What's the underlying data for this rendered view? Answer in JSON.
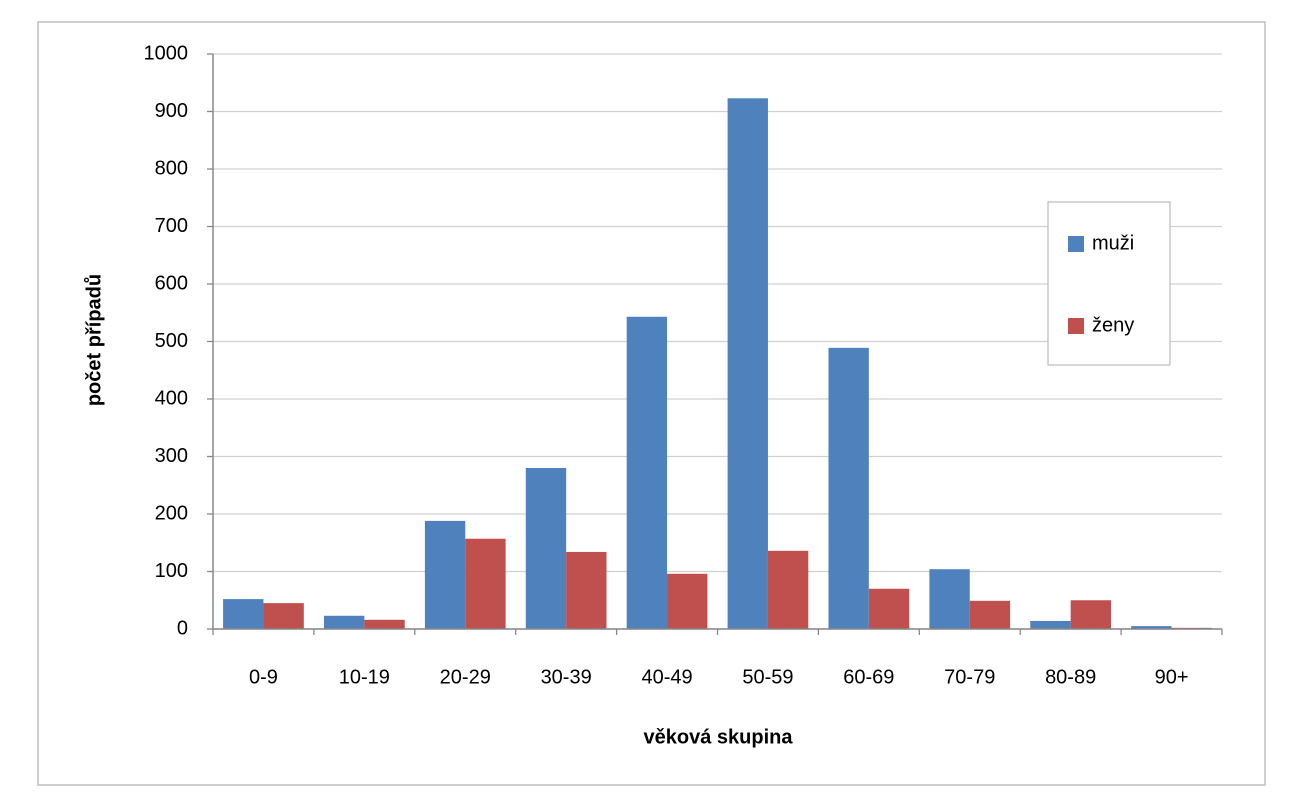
{
  "chart_data": {
    "type": "bar",
    "x_label": "věková skupina",
    "y_label": "počet případů",
    "categories": [
      "0-9",
      "10-19",
      "20-29",
      "30-39",
      "40-49",
      "50-59",
      "60-69",
      "70-79",
      "80-89",
      "90+"
    ],
    "series": [
      {
        "name": "muži",
        "color": "#4f81bd",
        "values": [
          52,
          23,
          188,
          280,
          543,
          923,
          489,
          104,
          14,
          5
        ]
      },
      {
        "name": "ženy",
        "color": "#c0504d",
        "values": [
          45,
          16,
          157,
          134,
          96,
          136,
          70,
          49,
          50,
          2
        ]
      }
    ],
    "ylim": [
      0,
      1000
    ],
    "yticks": [
      0,
      100,
      200,
      300,
      400,
      500,
      600,
      700,
      800,
      900,
      1000
    ],
    "grid": true,
    "legend": "right"
  }
}
